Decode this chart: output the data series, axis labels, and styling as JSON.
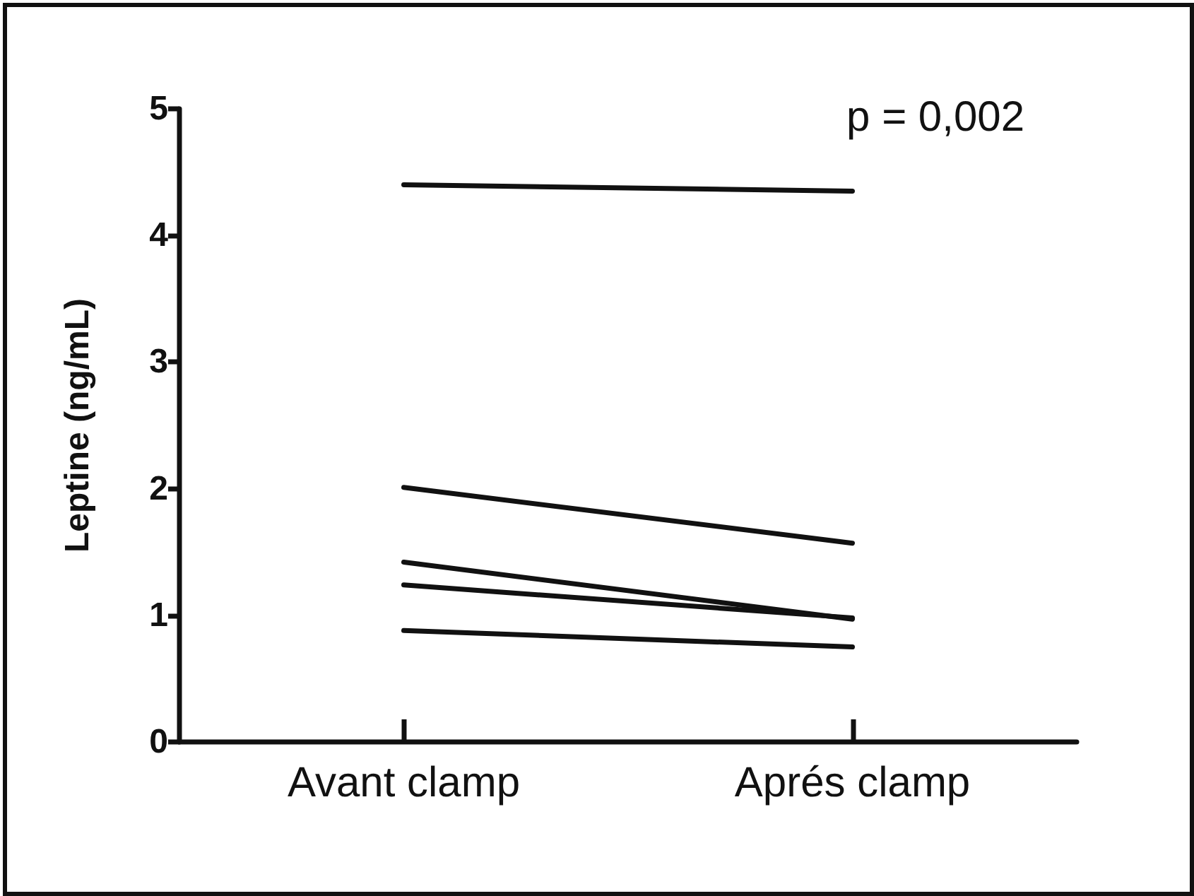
{
  "chart_data": {
    "type": "line",
    "ylabel": "Leptine (ng/mL)",
    "categories": [
      "Avant clamp",
      "Aprés clamp"
    ],
    "series": [
      {
        "color": "#111111",
        "values": [
          4.4,
          4.35
        ]
      },
      {
        "color": "#111111",
        "values": [
          2.01,
          1.57
        ]
      },
      {
        "color": "#111111",
        "values": [
          1.42,
          0.97
        ]
      },
      {
        "color": "#111111",
        "values": [
          1.24,
          0.98
        ]
      },
      {
        "color": "#111111",
        "values": [
          0.88,
          0.75
        ]
      }
    ],
    "ylim": [
      0,
      5
    ],
    "yticks": [
      0,
      1,
      2,
      3,
      4,
      5
    ],
    "annotations": [
      "p = 0,002"
    ],
    "marker": "none",
    "line_style": "solid"
  }
}
